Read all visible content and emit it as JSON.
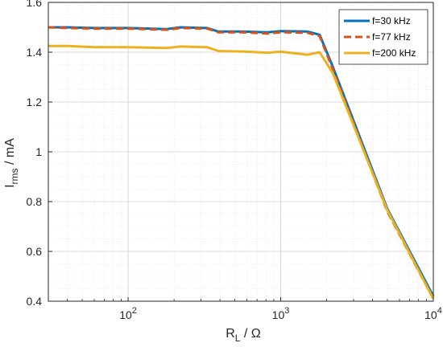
{
  "chart_data": {
    "type": "line",
    "xscale": "log",
    "xlim": [
      30,
      10000
    ],
    "ylim": [
      0.4,
      1.6
    ],
    "x_ticks": [
      {
        "value": 100,
        "base": "10",
        "exp": "2"
      },
      {
        "value": 1000,
        "base": "10",
        "exp": "3"
      },
      {
        "value": 10000,
        "base": "10",
        "exp": "4"
      }
    ],
    "y_ticks": [
      {
        "value": 0.4,
        "label": "0.4"
      },
      {
        "value": 0.6,
        "label": "0.6"
      },
      {
        "value": 0.8,
        "label": "0.8"
      },
      {
        "value": 1.0,
        "label": "1"
      },
      {
        "value": 1.2,
        "label": "1.2"
      },
      {
        "value": 1.4,
        "label": "1.4"
      },
      {
        "value": 1.6,
        "label": "1.6"
      }
    ],
    "xlabel": {
      "main": "R",
      "sub": "L",
      "unit": " / Ω"
    },
    "ylabel": {
      "main": "I",
      "sub": "rms",
      "unit": " / mA"
    },
    "grid": true,
    "minor_grid": true,
    "legend_position": "top-right",
    "series": [
      {
        "name": "f=30 kHz",
        "color": "#0072BD",
        "dash": "solid",
        "x": [
          30,
          40,
          60,
          100,
          180,
          220,
          330,
          390,
          560,
          820,
          1000,
          1500,
          1800,
          2200,
          5000,
          10000
        ],
        "y": [
          1.5,
          1.5,
          1.497,
          1.497,
          1.493,
          1.5,
          1.497,
          1.483,
          1.483,
          1.48,
          1.485,
          1.483,
          1.47,
          1.34,
          0.77,
          0.42
        ]
      },
      {
        "name": "f=77 kHz",
        "color": "#D95319",
        "dash": "dashed",
        "x": [
          30,
          40,
          60,
          100,
          180,
          220,
          330,
          390,
          560,
          820,
          1000,
          1500,
          1800,
          2200,
          5000,
          10000
        ],
        "y": [
          1.5,
          1.497,
          1.495,
          1.495,
          1.49,
          1.497,
          1.495,
          1.48,
          1.48,
          1.475,
          1.48,
          1.478,
          1.465,
          1.33,
          0.76,
          0.41
        ]
      },
      {
        "name": "f=200 kHz",
        "color": "#EDB120",
        "dash": "solid",
        "x": [
          30,
          40,
          60,
          100,
          180,
          220,
          330,
          390,
          560,
          820,
          1000,
          1500,
          1800,
          2200,
          5000,
          10000
        ],
        "y": [
          1.425,
          1.425,
          1.42,
          1.42,
          1.417,
          1.423,
          1.42,
          1.405,
          1.403,
          1.398,
          1.402,
          1.39,
          1.4,
          1.315,
          0.765,
          0.41
        ]
      }
    ]
  }
}
